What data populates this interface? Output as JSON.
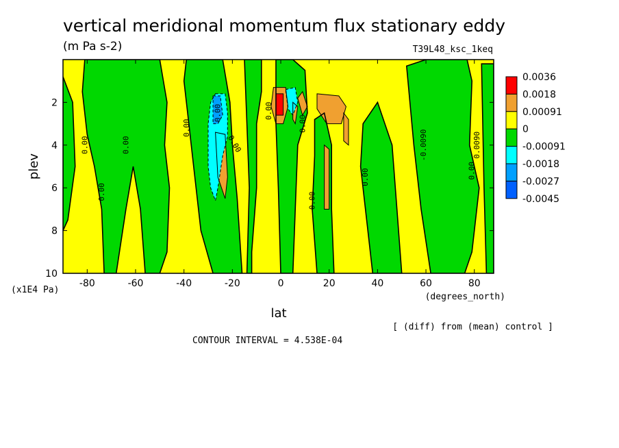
{
  "chart_data": {
    "type": "heatmap",
    "title": "vertical meridional momentum flux stationary eddy",
    "units": "(m Pa s-2)",
    "experiment": "T39L48_ksc_1keq",
    "xlabel": "lat",
    "x_units": "(degrees_north)",
    "ylabel": "plev",
    "y_units": "(x1E4 Pa)",
    "xlim": [
      -90,
      88
    ],
    "ylim": [
      10,
      0
    ],
    "x_ticks": [
      "-80",
      "-60",
      "-40",
      "-20",
      "0",
      "20",
      "40",
      "60",
      "80"
    ],
    "x_tick_values": [
      -80,
      -60,
      -40,
      -20,
      0,
      20,
      40,
      60,
      80
    ],
    "y_ticks": [
      "2",
      "4",
      "6",
      "8",
      "10"
    ],
    "y_tick_values": [
      2,
      4,
      6,
      8,
      10
    ],
    "contour_interval": "CONTOUR INTERVAL = 4.538E-04",
    "note": "[ (diff) from (mean) control ]",
    "colorbar": {
      "labels": [
        "0.0036",
        "0.0018",
        "0.00091",
        "0",
        "-0.00091",
        "-0.0018",
        "-0.0027",
        "-0.0045"
      ],
      "colors": [
        "#ff0000",
        "#f0a030",
        "#ffff00",
        "#00d800",
        "#00ffff",
        "#00a0ff",
        "#0060ff"
      ]
    },
    "contour_labels": [
      "0.00",
      "0.00",
      "0.00",
      "0.00",
      "0.00",
      "0.00",
      "0.00",
      "0.00",
      "0.00",
      "-0.0090",
      "0.0090",
      "0.00",
      "0.00"
    ],
    "regions": [
      {
        "level": 0,
        "points": [
          [
            -90,
            0
          ],
          [
            88,
            0
          ],
          [
            88,
            10
          ],
          [
            -90,
            10
          ]
        ]
      },
      {
        "level": -1,
        "points": [
          [
            -90,
            0.8
          ],
          [
            -86,
            2
          ],
          [
            -85,
            5
          ],
          [
            -88,
            7.5
          ],
          [
            -90,
            8
          ]
        ]
      },
      {
        "level": -1,
        "points": [
          [
            -81,
            0
          ],
          [
            -50,
            0
          ],
          [
            -47,
            2
          ],
          [
            -48,
            4
          ],
          [
            -46,
            6
          ],
          [
            -47,
            9
          ],
          [
            -50,
            10
          ],
          [
            -56,
            10
          ],
          [
            -58,
            7
          ],
          [
            -61,
            5
          ],
          [
            -64,
            7
          ],
          [
            -68,
            10
          ],
          [
            -73,
            10
          ],
          [
            -74,
            7
          ],
          [
            -77,
            5
          ],
          [
            -80,
            3.5
          ],
          [
            -82,
            1.5
          ]
        ]
      },
      {
        "level": -1,
        "points": [
          [
            -39,
            0
          ],
          [
            -24,
            0
          ],
          [
            -21,
            2
          ],
          [
            -20,
            4
          ],
          [
            -18,
            6.5
          ],
          [
            -16,
            10
          ],
          [
            -28,
            10
          ],
          [
            -33,
            8
          ],
          [
            -36,
            5
          ],
          [
            -38,
            3
          ],
          [
            -40,
            1
          ]
        ]
      },
      {
        "level": -1,
        "points": [
          [
            -15,
            0
          ],
          [
            -8,
            0
          ],
          [
            -8,
            1.5
          ],
          [
            -10,
            3
          ],
          [
            -10,
            6
          ],
          [
            -12,
            9
          ],
          [
            -12,
            10
          ],
          [
            -14,
            10
          ],
          [
            -13,
            6
          ],
          [
            -14,
            3
          ]
        ]
      },
      {
        "level": -1,
        "points": [
          [
            -2,
            0
          ],
          [
            5,
            0
          ],
          [
            10,
            0.5
          ],
          [
            11,
            2.5
          ],
          [
            7,
            4
          ],
          [
            6,
            7
          ],
          [
            5,
            10
          ],
          [
            0,
            10
          ],
          [
            -1,
            6
          ],
          [
            -2,
            3
          ]
        ]
      },
      {
        "level": -1,
        "points": [
          [
            14,
            2.8
          ],
          [
            18,
            2.5
          ],
          [
            21,
            4
          ],
          [
            21,
            7
          ],
          [
            22,
            10
          ],
          [
            15,
            10
          ],
          [
            13,
            7
          ],
          [
            14,
            4.5
          ]
        ]
      },
      {
        "level": -1,
        "points": [
          [
            34,
            3
          ],
          [
            40,
            2
          ],
          [
            46,
            4
          ],
          [
            48,
            7
          ],
          [
            50,
            10
          ],
          [
            38,
            10
          ],
          [
            35,
            7
          ],
          [
            33,
            5
          ]
        ]
      },
      {
        "level": -1,
        "points": [
          [
            52,
            0.3
          ],
          [
            60,
            0
          ],
          [
            70,
            0
          ],
          [
            77,
            0
          ],
          [
            79,
            1
          ],
          [
            78,
            4
          ],
          [
            82,
            6
          ],
          [
            79,
            9
          ],
          [
            76,
            10
          ],
          [
            62,
            10
          ],
          [
            58,
            7
          ],
          [
            55,
            4
          ]
        ]
      },
      {
        "level": -1,
        "points": [
          [
            83,
            0.2
          ],
          [
            88,
            0.2
          ],
          [
            88,
            10
          ],
          [
            85,
            10
          ],
          [
            84,
            6
          ]
        ]
      },
      {
        "level": 1,
        "points": [
          [
            -27,
            3.4
          ],
          [
            -23,
            3.5
          ],
          [
            -22,
            5.5
          ],
          [
            -23,
            6.5
          ],
          [
            -26,
            5.5
          ]
        ]
      },
      {
        "level": 1,
        "points": [
          [
            -3,
            1.3
          ],
          [
            2,
            1.3
          ],
          [
            3,
            2.2
          ],
          [
            1,
            3
          ],
          [
            -2,
            3
          ],
          [
            -4,
            2.2
          ]
        ]
      },
      {
        "level": 1,
        "points": [
          [
            5,
            2
          ],
          [
            7,
            2.2
          ],
          [
            6,
            3
          ],
          [
            5,
            2.8
          ]
        ]
      },
      {
        "level": 1,
        "points": [
          [
            7,
            1.8
          ],
          [
            9,
            1.5
          ],
          [
            11,
            2.2
          ],
          [
            9,
            2.6
          ]
        ]
      },
      {
        "level": 1,
        "points": [
          [
            15,
            1.6
          ],
          [
            24,
            1.7
          ],
          [
            27,
            2.2
          ],
          [
            25,
            3
          ],
          [
            19,
            3
          ],
          [
            15,
            2.3
          ]
        ]
      },
      {
        "level": 1,
        "points": [
          [
            18,
            4
          ],
          [
            20,
            4.2
          ],
          [
            20,
            7
          ],
          [
            18,
            7
          ]
        ]
      },
      {
        "level": 1,
        "points": [
          [
            26,
            2.5
          ],
          [
            28,
            2.8
          ],
          [
            28,
            4
          ],
          [
            26,
            3.8
          ]
        ]
      },
      {
        "level": 2,
        "points": [
          [
            -2,
            1.6
          ],
          [
            1,
            1.6
          ],
          [
            1,
            2.6
          ],
          [
            -2,
            2.6
          ]
        ]
      },
      {
        "level": -2,
        "points": [
          [
            -27,
            1.6
          ],
          [
            -23,
            1.6
          ],
          [
            -22,
            2.5
          ],
          [
            -22,
            3.6
          ],
          [
            -24,
            4.5
          ],
          [
            -26,
            6
          ],
          [
            -27,
            6.6
          ],
          [
            -29,
            6
          ],
          [
            -30,
            5
          ],
          [
            -30,
            3
          ],
          [
            -29,
            2
          ]
        ]
      },
      {
        "level": -2,
        "points": [
          [
            2,
            1.4
          ],
          [
            6,
            1.3
          ],
          [
            7,
            2
          ],
          [
            5,
            2.6
          ],
          [
            3,
            2.3
          ]
        ]
      },
      {
        "level": -3,
        "points": [
          [
            -28,
            1.7
          ],
          [
            -25,
            1.7
          ],
          [
            -24,
            2.6
          ],
          [
            -26,
            3
          ],
          [
            -28,
            3
          ]
        ]
      }
    ]
  }
}
